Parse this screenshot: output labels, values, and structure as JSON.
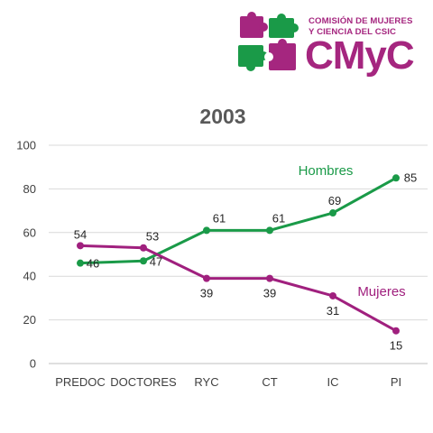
{
  "logo": {
    "line1": "COMISIÓN DE MUJERES",
    "line2": "Y CIENCIA DEL CSIC",
    "mark": "CMyC",
    "colors": {
      "magenta": "#a5267f",
      "green": "#1a9a48"
    },
    "icon": "puzzle-pieces-icon"
  },
  "chart_data": {
    "type": "line",
    "title": "2003",
    "categories": [
      "PREDOC",
      "DOCTORES",
      "RYC",
      "CT",
      "IC",
      "PI"
    ],
    "series": [
      {
        "name": "Hombres",
        "values": [
          46,
          47,
          61,
          61,
          69,
          85
        ],
        "color": "#1a9a48",
        "label_position": "above"
      },
      {
        "name": "Mujeres",
        "values": [
          54,
          53,
          39,
          39,
          31,
          15
        ],
        "color": "#a0207e",
        "label_position": "below"
      }
    ],
    "ylim": [
      0,
      100
    ],
    "yticks": [
      0,
      20,
      40,
      60,
      80,
      100
    ],
    "xlabel": "",
    "ylabel": "",
    "grid": true,
    "legend": "series names drawn next to lines"
  }
}
